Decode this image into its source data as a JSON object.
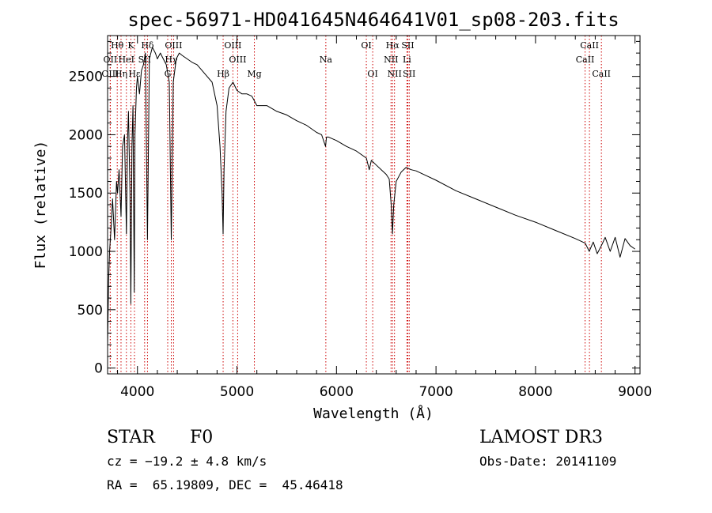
{
  "chart_data": {
    "type": "line",
    "title": "spec-56971-HD041645N464641V01_sp08-203.fits",
    "xlabel": "Wavelength (Å)",
    "ylabel": "Flux (relative)",
    "xlim": [
      3700,
      9050
    ],
    "ylim": [
      -50,
      2850
    ],
    "xticks": [
      4000,
      5000,
      6000,
      7000,
      8000,
      9000
    ],
    "yticks": [
      0,
      500,
      1000,
      1500,
      2000,
      2500
    ],
    "series": [
      {
        "name": "spectrum",
        "x": [
          3700,
          3710,
          3720,
          3735,
          3750,
          3770,
          3790,
          3800,
          3815,
          3835,
          3850,
          3870,
          3889,
          3900,
          3910,
          3925,
          3934,
          3945,
          3955,
          3968,
          3975,
          3990,
          4000,
          4020,
          4040,
          4060,
          4080,
          4101,
          4120,
          4150,
          4180,
          4200,
          4230,
          4260,
          4290,
          4320,
          4340,
          4360,
          4390,
          4420,
          4450,
          4500,
          4550,
          4600,
          4650,
          4700,
          4750,
          4800,
          4830,
          4850,
          4861,
          4870,
          4890,
          4920,
          4960,
          5000,
          5050,
          5100,
          5150,
          5200,
          5250,
          5300,
          5400,
          5500,
          5600,
          5700,
          5800,
          5850,
          5890,
          5900,
          5920,
          6000,
          6100,
          6200,
          6300,
          6330,
          6350,
          6400,
          6450,
          6500,
          6530,
          6550,
          6563,
          6575,
          6600,
          6650,
          6700,
          6750,
          6800,
          6900,
          7000,
          7200,
          7400,
          7600,
          7800,
          8000,
          8200,
          8400,
          8500,
          8540,
          8580,
          8620,
          8662,
          8700,
          8750,
          8800,
          8850,
          8900,
          8950,
          9000
        ],
        "values": [
          200,
          750,
          1000,
          1200,
          1450,
          1100,
          1600,
          1500,
          1700,
          1300,
          1900,
          2000,
          1150,
          1950,
          2200,
          1500,
          550,
          1900,
          2250,
          650,
          2000,
          2400,
          2500,
          2350,
          2550,
          2600,
          2700,
          1100,
          2650,
          2750,
          2700,
          2650,
          2700,
          2650,
          2600,
          2450,
          1100,
          2450,
          2650,
          2700,
          2680,
          2650,
          2620,
          2600,
          2550,
          2500,
          2450,
          2250,
          1900,
          1500,
          1150,
          1700,
          2200,
          2400,
          2450,
          2380,
          2350,
          2350,
          2330,
          2250,
          2250,
          2250,
          2200,
          2170,
          2120,
          2080,
          2020,
          2000,
          1900,
          1980,
          1980,
          1950,
          1900,
          1860,
          1800,
          1700,
          1780,
          1740,
          1700,
          1660,
          1620,
          1400,
          1150,
          1400,
          1600,
          1680,
          1720,
          1700,
          1690,
          1650,
          1610,
          1520,
          1450,
          1380,
          1310,
          1250,
          1180,
          1110,
          1070,
          1000,
          1080,
          980,
          1050,
          1120,
          1000,
          1120,
          950,
          1110,
          1050,
          1020
        ]
      }
    ],
    "spectral_lines": [
      {
        "label": "Hθ",
        "wl": 3797,
        "row": 0
      },
      {
        "label": "K",
        "wl": 3934,
        "row": 0
      },
      {
        "label": "Hδ",
        "wl": 4101,
        "row": 0
      },
      {
        "label": "OIII",
        "wl": 4363,
        "row": 0
      },
      {
        "label": "OIII",
        "wl": 4959,
        "row": 0
      },
      {
        "label": "OI",
        "wl": 6300,
        "row": 0
      },
      {
        "label": "Hα",
        "wl": 6563,
        "row": 0
      },
      {
        "label": "SII",
        "wl": 6717,
        "row": 0
      },
      {
        "label": "CaII",
        "wl": 8542,
        "row": 0
      },
      {
        "label": "OII",
        "wl": 3727,
        "row": 1
      },
      {
        "label": "HeI",
        "wl": 3889,
        "row": 1
      },
      {
        "label": "SII",
        "wl": 4072,
        "row": 1
      },
      {
        "label": "Hγ",
        "wl": 4340,
        "row": 1
      },
      {
        "label": "OIII",
        "wl": 5007,
        "row": 1
      },
      {
        "label": "Na",
        "wl": 5893,
        "row": 1
      },
      {
        "label": "NII",
        "wl": 6548,
        "row": 1
      },
      {
        "label": "Li",
        "wl": 6708,
        "row": 1
      },
      {
        "label": "CaII",
        "wl": 8498,
        "row": 1
      },
      {
        "label": "OIII",
        "wl": 3727,
        "row": 2
      },
      {
        "label": "Hη",
        "wl": 3835,
        "row": 2
      },
      {
        "label": "Hε",
        "wl": 3970,
        "row": 2
      },
      {
        "label": "G",
        "wl": 4304,
        "row": 2
      },
      {
        "label": "Hβ",
        "wl": 4861,
        "row": 2
      },
      {
        "label": "Mg",
        "wl": 5175,
        "row": 2
      },
      {
        "label": "OI",
        "wl": 6364,
        "row": 2
      },
      {
        "label": "NII",
        "wl": 6583,
        "row": 2
      },
      {
        "label": "SII",
        "wl": 6731,
        "row": 2
      },
      {
        "label": "CaII",
        "wl": 8662,
        "row": 2
      }
    ],
    "line_color": "#000000",
    "marker_color": "#cc0000"
  },
  "info": {
    "object_class": "STAR",
    "subclass": "F0",
    "survey": "LAMOST DR3",
    "redshift": "cz = −19.2 ± 4.8 km/s",
    "obs_date": "Obs-Date: 20141109",
    "coords": "RA =  65.19809, DEC =  45.46418"
  }
}
